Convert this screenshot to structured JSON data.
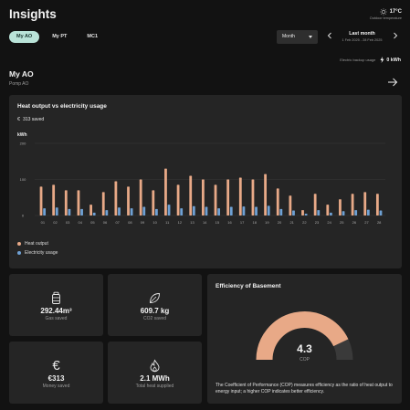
{
  "header": {
    "title": "Insights",
    "weather": {
      "temperature": "17°C",
      "label": "Outdoor temperature",
      "icon": "sun-icon"
    }
  },
  "tabs": [
    {
      "label": "My AO",
      "active": true
    },
    {
      "label": "My PT",
      "active": false
    },
    {
      "label": "MC1",
      "active": false
    }
  ],
  "period": {
    "selected": "Month",
    "label": "Last month",
    "range": "1 Feb 2025 - 28 Feb 2025"
  },
  "backup": {
    "label": "Electric backup usage",
    "value": "0 kWh",
    "icon": "lightning-icon"
  },
  "device": {
    "name": "My AO",
    "subtitle": "Pomp AO"
  },
  "chart_card": {
    "title": "Heat output vs electricity usage",
    "saved": "313 saved",
    "saved_icon": "euro-icon"
  },
  "chart_data": {
    "type": "bar",
    "ylabel": "kWh",
    "ylim": [
      0,
      200
    ],
    "yticks": [
      0,
      100,
      200
    ],
    "grid": true,
    "categories": [
      "01",
      "02",
      "03",
      "04",
      "05",
      "06",
      "07",
      "08",
      "09",
      "10",
      "11",
      "12",
      "13",
      "14",
      "15",
      "16",
      "17",
      "18",
      "19",
      "20",
      "21",
      "22",
      "23",
      "24",
      "25",
      "26",
      "27",
      "28"
    ],
    "series": [
      {
        "name": "Heat output",
        "color": "#e8a987",
        "values": [
          80,
          85,
          70,
          70,
          30,
          65,
          95,
          80,
          100,
          70,
          130,
          85,
          110,
          100,
          85,
          100,
          105,
          100,
          115,
          75,
          55,
          15,
          60,
          30,
          45,
          60,
          65,
          60
        ]
      },
      {
        "name": "Electricity usage",
        "color": "#6fa1d4",
        "values": [
          20,
          22,
          18,
          18,
          8,
          15,
          22,
          20,
          24,
          18,
          30,
          20,
          26,
          24,
          20,
          24,
          25,
          24,
          27,
          18,
          14,
          5,
          15,
          8,
          12,
          15,
          16,
          14
        ]
      }
    ],
    "legend_position": "bottom-left"
  },
  "stats": [
    {
      "value": "292.44m³",
      "label": "Gas saved",
      "icon": "gas-canister-icon"
    },
    {
      "value": "609.7 kg",
      "label": "CO2 saved",
      "icon": "leaf-icon"
    },
    {
      "value": "€313",
      "label": "Money saved",
      "icon": "euro-icon"
    },
    {
      "value": "2.1 MWh",
      "label": "Total heat supplied",
      "icon": "flame-icon"
    }
  ],
  "efficiency": {
    "title": "Efficiency of Basement",
    "cop": "4.3",
    "cop_label": "COP",
    "cop_fraction": 0.86,
    "description": "The Coefficient of Performance (COP) measures efficiency as the ratio of heat output to energy input; a higher COP indicates better efficiency.",
    "colors": {
      "fill": "#e8a987",
      "track": "#3a3a3a"
    }
  }
}
